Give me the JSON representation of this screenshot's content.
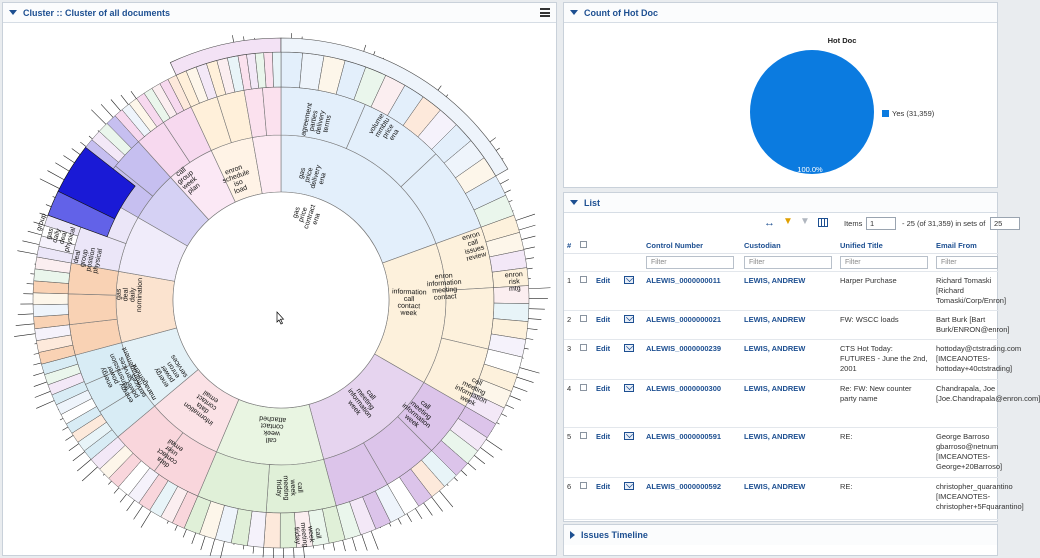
{
  "cluster_panel": {
    "title": "Cluster :: Cluster of all documents"
  },
  "sunburst": {
    "labels": [
      {
        "name": "agreement-parties",
        "text": [
          "agreement",
          "parties",
          "delivery",
          "terms"
        ]
      },
      {
        "name": "gas-price-delivery",
        "text": [
          "gas",
          "price",
          "delivery",
          "ena"
        ]
      },
      {
        "name": "volume-mmbtu",
        "text": [
          "volume",
          "mmbtu",
          "price",
          "ena"
        ]
      },
      {
        "name": "gas-price-contract",
        "text": [
          "gas",
          "price",
          "contract",
          "ena"
        ]
      },
      {
        "name": "call-group-week",
        "text": [
          "call",
          "group",
          "week",
          "plan"
        ]
      },
      {
        "name": "enron-schedule",
        "text": [
          "enron",
          "schedule",
          "iso",
          "load"
        ]
      },
      {
        "name": "enron-call-issues",
        "text": [
          "enron",
          "call",
          "issues",
          "review"
        ]
      },
      {
        "name": "enron-risk",
        "text": [
          "enron",
          "risk",
          "mtg"
        ]
      },
      {
        "name": "enron-information",
        "text": [
          "enron",
          "information",
          "meeting",
          "contact"
        ]
      },
      {
        "name": "information-call",
        "text": [
          "information",
          "call",
          "contact",
          "week"
        ]
      },
      {
        "name": "deal-group-position",
        "text": [
          "deal",
          "group",
          "position",
          "physical"
        ]
      },
      {
        "name": "gas-deal-daily",
        "text": [
          "gas",
          "deal",
          "daily",
          "nomination"
        ]
      },
      {
        "name": "gas-daily-deal",
        "text": [
          "gas",
          "daily",
          "deal",
          "physical"
        ]
      },
      {
        "name": "group-outer",
        "text": [
          "group"
        ]
      },
      {
        "name": "energy-power",
        "text": [
          "energy",
          "power",
          "enron",
          "services"
        ]
      },
      {
        "name": "energy-power-transmission",
        "text": [
          "energy",
          "power",
          "transmission",
          "services",
          "management"
        ]
      },
      {
        "name": "energy-power-services",
        "text": [
          "energy",
          "power",
          "services",
          "management"
        ]
      },
      {
        "name": "information-data",
        "text": [
          "information",
          "data",
          "contact",
          "email"
        ]
      },
      {
        "name": "data-contact-user",
        "text": [
          "data",
          "contact",
          "user",
          "email"
        ]
      },
      {
        "name": "call-week-contact",
        "text": [
          "call",
          "week",
          "contact",
          "attached"
        ]
      },
      {
        "name": "call-week-meeting",
        "text": [
          "call",
          "week",
          "meeting",
          "friday"
        ]
      },
      {
        "name": "call-week-meeting-2",
        "text": [
          "call",
          "week",
          "meeting",
          "friday"
        ]
      },
      {
        "name": "call-meeting-information",
        "text": [
          "call",
          "meeting",
          "information",
          "week"
        ]
      },
      {
        "name": "call-meeting-information-2",
        "text": [
          "call",
          "meeting",
          "information",
          "week"
        ]
      },
      {
        "name": "call-meeting-information-3",
        "text": [
          "call",
          "meeting",
          "information",
          "week"
        ]
      }
    ]
  },
  "hot_doc_panel": {
    "title": "Count of Hot Doc",
    "chart_data": {
      "type": "pie",
      "title": "Hot Doc",
      "slices": [
        {
          "label": "Yes (31,359)",
          "value": 31359,
          "percent_label": "100.0%",
          "color": "#0b7be0"
        }
      ],
      "legend_position": "right"
    }
  },
  "list_panel": {
    "title": "List",
    "toolbar": {
      "items_label": "Items",
      "page_value": "1",
      "range_text": "- 25 (of 31,359) in sets of",
      "set_size": "25"
    },
    "columns": {
      "num": "#",
      "control": "Control Number",
      "custodian": "Custodian",
      "title": "Unified Title",
      "from": "Email From"
    },
    "filter_placeholder": "Filter",
    "rows": [
      {
        "n": "1",
        "edit": "Edit",
        "control": "ALEWIS_0000000011",
        "custodian": "LEWIS, ANDREW",
        "title": "Harper Purchase",
        "from": "Richard Tomaski [Richard Tomaski/Corp/Enron]"
      },
      {
        "n": "2",
        "edit": "Edit",
        "control": "ALEWIS_0000000021",
        "custodian": "LEWIS, ANDREW",
        "title": "FW: WSCC loads",
        "from": "Bart Burk [Bart Burk/ENRON@enron]"
      },
      {
        "n": "3",
        "edit": "Edit",
        "control": "ALEWIS_0000000239",
        "custodian": "LEWIS, ANDREW",
        "title": "CTS Hot Today: FUTURES - June the 2nd, 2001",
        "from": "hottoday@ctstrading.com [IMCEANOTES-hottoday+40ctstrading]"
      },
      {
        "n": "4",
        "edit": "Edit",
        "control": "ALEWIS_0000000300",
        "custodian": "LEWIS, ANDREW",
        "title": "Re: FW: New counter party name",
        "from": "Chandrapala, Joe [Joe.Chandrapala@enron.com]"
      },
      {
        "n": "5",
        "edit": "Edit",
        "control": "ALEWIS_0000000591",
        "custodian": "LEWIS, ANDREW",
        "title": "RE:",
        "from": "George Barroso gbarroso@netnum [IMCEANOTES-George+20Barroso]"
      },
      {
        "n": "6",
        "edit": "Edit",
        "control": "ALEWIS_0000000592",
        "custodian": "LEWIS, ANDREW",
        "title": "RE:",
        "from": "christopher_quarantino [IMCEANOTES-christopher+5Fquarantino]"
      }
    ]
  },
  "timeline_panel": {
    "title": "Issues Timeline"
  }
}
